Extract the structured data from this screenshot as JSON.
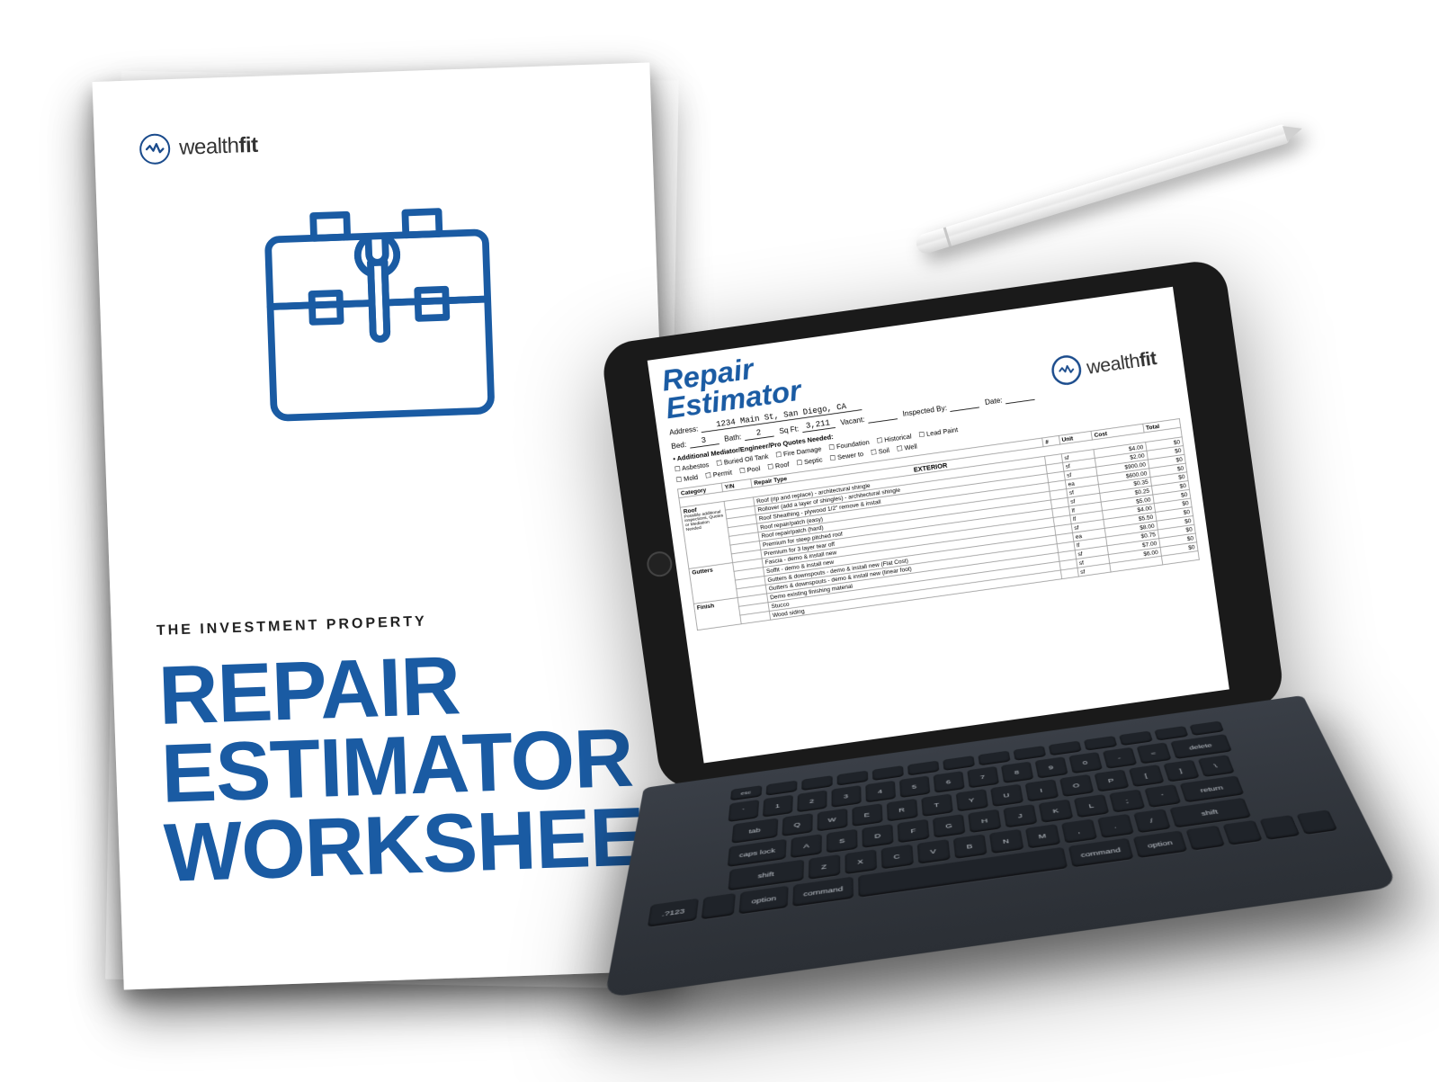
{
  "brand": {
    "name_light": "wealth",
    "name_bold": "fit",
    "accent_color": "#1a5ba3"
  },
  "paper": {
    "subtitle": "THE INVESTMENT PROPERTY",
    "title_line1": "REPAIR",
    "title_line2": "ESTIMATOR",
    "title_line3": "WORKSHEET",
    "title_color": "#1a5ba3",
    "icon_stroke": "#1a5ba3"
  },
  "screen": {
    "title_line1": "Repair",
    "title_line2": "Estimator",
    "fields": {
      "address_label": "Address:",
      "address_value": "1234 Main St, San Diego, CA",
      "bed_label": "Bed:",
      "bed_value": "3",
      "bath_label": "Bath:",
      "bath_value": "2",
      "sqft_label": "Sq Ft:",
      "sqft_value": "3,211",
      "vacant_label": "Vacant:",
      "inspected_label": "Inspected By:",
      "date_label": "Date:"
    },
    "mediator_header": "• Additional Mediator/Engineer/Pro Quotes Needed:",
    "checkbox_row1": [
      "Asbestos",
      "Buried Oil Tank",
      "Fire Damage",
      "Foundation",
      "Historical",
      "Lead Paint"
    ],
    "checkbox_row2": [
      "Mold",
      "Permit",
      "Pool",
      "Roof",
      "Septic",
      "Sewer to",
      "Soil",
      "Well"
    ],
    "columns": [
      "Category",
      "Y/N",
      "Repair Type",
      "#",
      "Unit",
      "Cost",
      "Total"
    ],
    "section_header": "EXTERIOR",
    "categories": [
      {
        "name": "Roof",
        "note": "Possible additional inspections, Quotes or Mediation Needed",
        "rows": [
          {
            "desc": "Roof (rip and replace) - architectural shingle",
            "unit": "sf",
            "cost": "$4.00",
            "total": "$0"
          },
          {
            "desc": "Rollover (add a layer of shingles) - architectural shingle",
            "unit": "sf",
            "cost": "$2.00",
            "total": "$0"
          },
          {
            "desc": "Roof Sheathing - plywood 1/2\" remove & install",
            "unit": "sf",
            "cost": "$900.00",
            "total": "$0"
          },
          {
            "desc": "Roof repair/patch (easy)",
            "unit": "ea",
            "cost": "$600.00",
            "total": "$0"
          },
          {
            "desc": "Roof repair/patch (hard)",
            "unit": "sf",
            "cost": "$0.35",
            "total": "$0"
          },
          {
            "desc": "Premium for steep pitched roof",
            "unit": "sf",
            "cost": "$0.25",
            "total": "$0"
          },
          {
            "desc": "Premium for 3 layer tear off",
            "unit": "lf",
            "cost": "$5.00",
            "total": "$0"
          }
        ]
      },
      {
        "name": "Gutters",
        "rows": [
          {
            "desc": "Fascia - demo & install new",
            "unit": "lf",
            "cost": "$4.00",
            "total": "$0"
          },
          {
            "desc": "Soffit - demo & install new",
            "unit": "sf",
            "cost": "$5.50",
            "total": "$0"
          },
          {
            "desc": "Gutters & downspouts - demo & install new (Flat Cost)",
            "unit": "ea",
            "cost": "$8.00",
            "total": "$0"
          },
          {
            "desc": "Gutters & downspouts - demo & install new (linear foot)",
            "unit": "lf",
            "cost": "$0.75",
            "total": "$0"
          }
        ]
      },
      {
        "name": "Finish",
        "rows": [
          {
            "desc": "Demo existing finishing material",
            "unit": "sf",
            "cost": "$7.00",
            "total": "$0"
          },
          {
            "desc": "Stucco",
            "unit": "sf",
            "cost": "$6.00",
            "total": "$0"
          },
          {
            "desc": "Wood siding",
            "unit": "sf",
            "cost": "",
            "total": ""
          }
        ]
      }
    ]
  },
  "keyboard": {
    "fn_row": [
      "esc",
      "",
      "",
      "",
      "",
      "",
      "",
      "",
      "",
      "",
      "",
      "",
      "",
      ""
    ],
    "row1": [
      "`",
      "1",
      "2",
      "3",
      "4",
      "5",
      "6",
      "7",
      "8",
      "9",
      "0",
      "-",
      "=",
      "delete"
    ],
    "row2": [
      "tab",
      "Q",
      "W",
      "E",
      "R",
      "T",
      "Y",
      "U",
      "I",
      "O",
      "P",
      "[",
      "]",
      "\\"
    ],
    "row3": [
      "caps lock",
      "A",
      "S",
      "D",
      "F",
      "G",
      "H",
      "J",
      "K",
      "L",
      ";",
      "'",
      "return"
    ],
    "row4": [
      "shift",
      "Z",
      "X",
      "C",
      "V",
      "B",
      "N",
      "M",
      ",",
      ".",
      "/",
      "shift"
    ],
    "row5": [
      ".?123",
      "",
      "option",
      "command",
      "",
      "command",
      "option",
      "",
      "",
      "",
      ""
    ]
  }
}
